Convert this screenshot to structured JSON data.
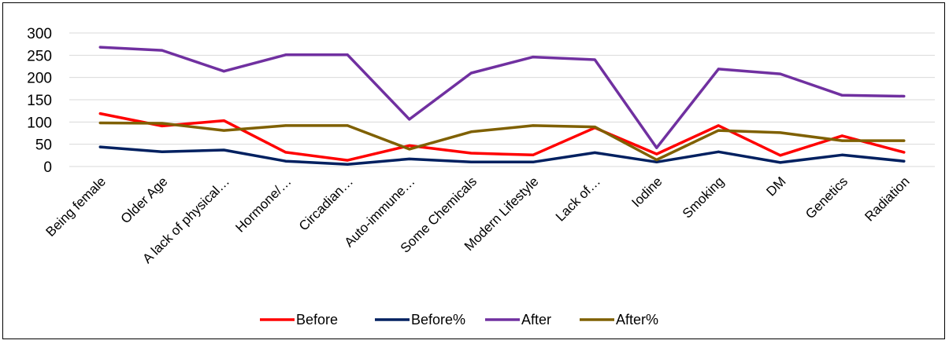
{
  "chart_data": {
    "type": "line",
    "categories": [
      "Being female",
      "Older Age",
      "A lack of physical…",
      "Hormone/…",
      "Circadian…",
      "Auto-immune…",
      "Some Chemicals",
      "Modern Lifestyle",
      "Lack of…",
      "Iodine",
      "Smoking",
      "DM",
      "Genetics",
      "Radiation"
    ],
    "ylim": [
      0,
      300
    ],
    "yticks": [
      0,
      50,
      100,
      150,
      200,
      250,
      300
    ],
    "grid": true,
    "legend_position": "bottom",
    "series": [
      {
        "name": "Before",
        "color": "#ff0000",
        "values": [
          119,
          91,
          103,
          32,
          14,
          47,
          30,
          26,
          87,
          28,
          92,
          25,
          69,
          32
        ]
      },
      {
        "name": "Before%",
        "color": "#002060",
        "values": [
          44,
          33,
          37,
          12,
          5,
          17,
          10,
          10,
          31,
          10,
          33,
          9,
          26,
          12
        ]
      },
      {
        "name": "After",
        "color": "#7030a0",
        "values": [
          268,
          261,
          214,
          251,
          251,
          106,
          210,
          246,
          240,
          42,
          219,
          208,
          160,
          158
        ]
      },
      {
        "name": "After%",
        "color": "#7f6000",
        "values": [
          98,
          97,
          81,
          92,
          92,
          39,
          78,
          92,
          89,
          15,
          81,
          76,
          58,
          58
        ]
      }
    ]
  }
}
